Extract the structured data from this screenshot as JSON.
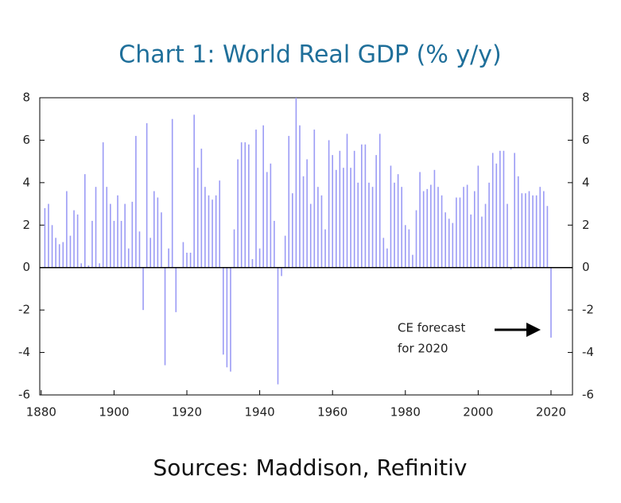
{
  "chart_data": {
    "type": "bar",
    "title": "Chart 1: World Real GDP (% y/y)",
    "source": "Sources: Maddison, Refinitiv",
    "annotation": [
      "CE forecast",
      "for 2020"
    ],
    "color": "#9b9bf5",
    "x": [
      1881,
      1882,
      1883,
      1884,
      1885,
      1886,
      1887,
      1888,
      1889,
      1890,
      1891,
      1892,
      1893,
      1894,
      1895,
      1896,
      1897,
      1898,
      1899,
      1900,
      1901,
      1902,
      1903,
      1904,
      1905,
      1906,
      1907,
      1908,
      1909,
      1910,
      1911,
      1912,
      1913,
      1914,
      1915,
      1916,
      1917,
      1918,
      1919,
      1920,
      1921,
      1922,
      1923,
      1924,
      1925,
      1926,
      1927,
      1928,
      1929,
      1930,
      1931,
      1932,
      1933,
      1934,
      1935,
      1936,
      1937,
      1938,
      1939,
      1940,
      1941,
      1942,
      1943,
      1944,
      1945,
      1946,
      1947,
      1948,
      1949,
      1950,
      1951,
      1952,
      1953,
      1954,
      1955,
      1956,
      1957,
      1958,
      1959,
      1960,
      1961,
      1962,
      1963,
      1964,
      1965,
      1966,
      1967,
      1968,
      1969,
      1970,
      1971,
      1972,
      1973,
      1974,
      1975,
      1976,
      1977,
      1978,
      1979,
      1980,
      1981,
      1982,
      1983,
      1984,
      1985,
      1986,
      1987,
      1988,
      1989,
      1990,
      1991,
      1992,
      1993,
      1994,
      1995,
      1996,
      1997,
      1998,
      1999,
      2000,
      2001,
      2002,
      2003,
      2004,
      2005,
      2006,
      2007,
      2008,
      2009,
      2010,
      2011,
      2012,
      2013,
      2014,
      2015,
      2016,
      2017,
      2018,
      2019,
      2020
    ],
    "values": [
      2.8,
      3.0,
      2.0,
      1.4,
      1.1,
      1.2,
      3.6,
      1.5,
      2.7,
      2.5,
      0.2,
      4.4,
      0.1,
      2.2,
      3.8,
      0.2,
      5.9,
      3.8,
      3.0,
      2.2,
      3.4,
      2.2,
      3.0,
      0.9,
      3.1,
      6.2,
      1.7,
      -2.0,
      6.8,
      1.4,
      3.6,
      3.3,
      2.6,
      -4.6,
      0.9,
      7.0,
      -2.1,
      null,
      1.2,
      0.7,
      0.7,
      7.2,
      4.7,
      5.6,
      3.8,
      3.4,
      3.2,
      3.4,
      4.1,
      -4.1,
      -4.7,
      -4.9,
      1.8,
      5.1,
      5.9,
      5.9,
      5.8,
      0.4,
      6.5,
      0.9,
      6.7,
      4.5,
      4.9,
      2.2,
      -5.5,
      -0.4,
      1.5,
      6.2,
      3.5,
      8.0,
      6.7,
      4.3,
      5.1,
      3.0,
      6.5,
      3.8,
      3.4,
      1.8,
      6.0,
      5.3,
      4.6,
      5.5,
      4.7,
      6.3,
      4.7,
      5.5,
      4.0,
      5.8,
      5.8,
      4.0,
      3.8,
      5.3,
      6.3,
      1.4,
      0.9,
      4.8,
      4.0,
      4.4,
      3.8,
      2.0,
      1.8,
      0.6,
      2.7,
      4.5,
      3.6,
      3.7,
      3.9,
      4.6,
      3.8,
      3.4,
      2.6,
      2.3,
      2.1,
      3.3,
      3.3,
      3.8,
      3.9,
      2.5,
      3.6,
      4.8,
      2.4,
      3.0,
      4.0,
      5.4,
      4.9,
      5.5,
      5.5,
      3.0,
      -0.1,
      5.4,
      4.3,
      3.5,
      3.5,
      3.6,
      3.4,
      3.4,
      3.8,
      3.6,
      2.9,
      -3.3
    ],
    "xlim": [
      1879.6,
      2025.9
    ],
    "xticks": [
      1880,
      1900,
      1920,
      1940,
      1960,
      1980,
      2000,
      2020
    ],
    "ylim": [
      -6,
      8
    ],
    "yticks": [
      -6,
      -4,
      -2,
      0,
      2,
      4,
      6,
      8
    ],
    "y2lim": [
      -6,
      8
    ],
    "y2ticks": [
      -6,
      -4,
      -2,
      0,
      2,
      4,
      6,
      8
    ]
  }
}
